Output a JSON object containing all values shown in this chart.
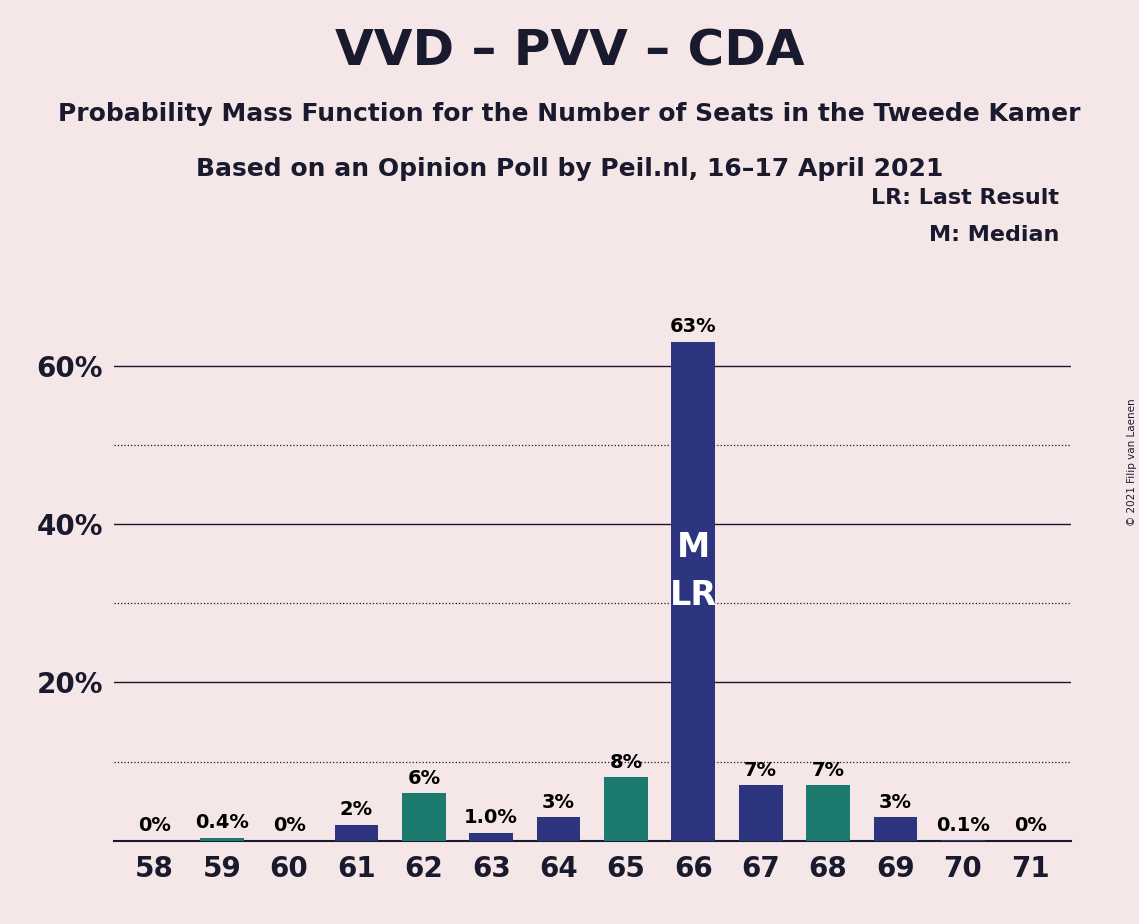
{
  "title": "VVD – PVV – CDA",
  "subtitle1": "Probability Mass Function for the Number of Seats in the Tweede Kamer",
  "subtitle2": "Based on an Opinion Poll by Peil.nl, 16–17 April 2021",
  "copyright": "© 2021 Filip van Laenen",
  "categories": [
    58,
    59,
    60,
    61,
    62,
    63,
    64,
    65,
    66,
    67,
    68,
    69,
    70,
    71
  ],
  "values": [
    0.0,
    0.4,
    0.0,
    2.0,
    6.0,
    1.0,
    3.0,
    8.0,
    63.0,
    7.0,
    7.0,
    3.0,
    0.1,
    0.0
  ],
  "bar_colors": [
    "#2d3580",
    "#1d7a6e",
    "#2d3580",
    "#2d3580",
    "#1d7a6e",
    "#2d3580",
    "#2d3580",
    "#1d7a6e",
    "#2d3580",
    "#2d3580",
    "#1d7a6e",
    "#2d3580",
    "#2d3580",
    "#2d3580"
  ],
  "labels": [
    "0%",
    "0.4%",
    "0%",
    "2%",
    "6%",
    "1.0%",
    "3%",
    "8%",
    "63%",
    "7%",
    "7%",
    "3%",
    "0.1%",
    "0%"
  ],
  "median_seat": 66,
  "lr_seat": 66,
  "legend_lr": "LR: Last Result",
  "legend_m": "M: Median",
  "background_color": "#f5e6e8",
  "bar_color_navy": "#2d3580",
  "bar_color_teal": "#1d7a6e",
  "ylim_max": 70,
  "dotted_yticks": [
    10,
    30,
    50
  ],
  "solid_yticks": [
    20,
    40,
    60
  ],
  "label_fontsize": 14,
  "tick_fontsize": 20,
  "title_fontsize": 36,
  "subtitle_fontsize": 18,
  "bar_width": 0.65
}
